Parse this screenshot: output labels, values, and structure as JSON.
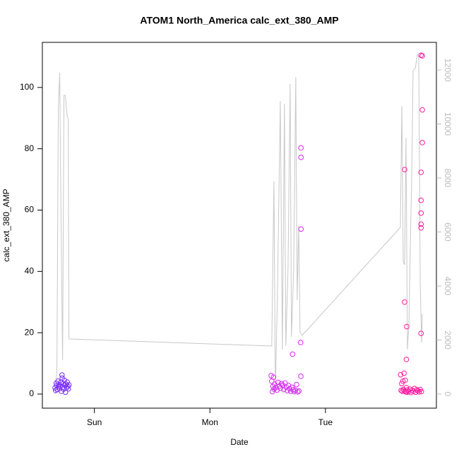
{
  "chart_data": {
    "type": "scatter",
    "title": "ATOM1 North_America calc_ext_380_AMP",
    "x_label": "Date",
    "y_label": "calc_ext_380_AMP",
    "xlim": [
      -0.45,
      2.96
    ],
    "xticks": [
      {
        "value": 0,
        "label": "Sun"
      },
      {
        "value": 1,
        "label": "Mon"
      },
      {
        "value": 2,
        "label": "Tue"
      }
    ],
    "ylim": [
      -4.6,
      114.7
    ],
    "yticks": [
      0,
      20,
      40,
      60,
      80,
      100
    ],
    "y2lim": [
      -523,
      13020
    ],
    "y2ticks": [
      0,
      2000,
      4000,
      6000,
      8000,
      10000,
      12000
    ],
    "series": [
      {
        "type": "scatter",
        "color": "#7b2ff7",
        "x": [
          -0.34,
          -0.335,
          -0.33,
          -0.325,
          -0.32,
          -0.315,
          -0.31,
          -0.305,
          -0.3,
          -0.295,
          -0.29,
          -0.285,
          -0.28,
          -0.278,
          -0.275,
          -0.27,
          -0.265,
          -0.26,
          -0.255,
          -0.25,
          -0.245,
          -0.24,
          -0.235,
          -0.23,
          -0.225,
          -0.22
        ],
        "values": [
          2,
          1.2,
          3.5,
          2.8,
          1.5,
          4.2,
          2.4,
          3.1,
          1.8,
          2.6,
          3.8,
          0.9,
          6.2,
          5.2,
          2.2,
          3.4,
          1.6,
          4.5,
          2.9,
          0.6,
          3.2,
          2.1,
          3.9,
          2.5,
          1.7,
          3.0
        ]
      },
      {
        "type": "scatter",
        "color": "#d42cf0",
        "x": [
          1.53,
          1.535,
          1.54,
          1.545,
          1.55,
          1.555,
          1.56,
          1.57,
          1.58,
          1.59,
          1.6,
          1.61,
          1.62,
          1.63,
          1.64,
          1.65,
          1.66,
          1.67,
          1.68,
          1.69,
          1.7,
          1.71,
          1.72,
          1.73,
          1.74,
          1.75,
          1.76,
          1.77,
          1.715,
          1.788,
          1.788,
          1.788,
          1.785,
          1.787
        ],
        "values": [
          6,
          4.2,
          0.8,
          2.5,
          5.5,
          1.6,
          3.2,
          2.1,
          1.3,
          3.8,
          2.6,
          1.9,
          3.4,
          2.9,
          1.5,
          3.6,
          2.3,
          1.1,
          2.8,
          1.7,
          0.9,
          2.2,
          1.4,
          0.8,
          1.2,
          3.1,
          0.7,
          1.0,
          13,
          80.3,
          77.2,
          53.8,
          16.8,
          5.8
        ]
      },
      {
        "type": "scatter",
        "color": "#ff1aa0",
        "x": [
          2.65,
          2.655,
          2.66,
          2.665,
          2.67,
          2.675,
          2.68,
          2.685,
          2.69,
          2.695,
          2.7,
          2.705,
          2.71,
          2.72,
          2.73,
          2.74,
          2.75,
          2.76,
          2.77,
          2.78,
          2.79,
          2.8,
          2.81,
          2.82,
          2.83,
          2.685,
          2.685,
          2.703,
          2.7,
          2.827,
          2.838,
          2.838,
          2.838,
          2.827,
          2.827,
          2.827,
          2.827,
          2.827,
          2.827
        ],
        "values": [
          6.3,
          1.2,
          3.4,
          0.9,
          4.2,
          1.5,
          6.8,
          1.0,
          4.5,
          0.7,
          2.1,
          0.6,
          1.3,
          0.8,
          1.6,
          0.5,
          1.2,
          0.9,
          1.8,
          0.6,
          1.4,
          1.1,
          0.7,
          1.5,
          0.8,
          73.2,
          30,
          22,
          11.3,
          110.5,
          110.3,
          92.7,
          82,
          72.3,
          63.2,
          59,
          55.4,
          54.2,
          19.8
        ]
      },
      {
        "type": "line",
        "axis": "y2",
        "color": "#c8c8c8",
        "x": [
          -0.336,
          -0.324,
          -0.312,
          -0.3,
          -0.287,
          -0.275,
          -0.263,
          -0.251,
          -0.239,
          -0.226,
          -0.22,
          1.535,
          1.554,
          1.566,
          1.584,
          1.609,
          1.627,
          1.645,
          1.657,
          1.676,
          1.694,
          1.706,
          1.725,
          1.743,
          1.755,
          1.768,
          1.78,
          1.798,
          2.648,
          2.661,
          2.673,
          2.685,
          2.697,
          2.709,
          2.722,
          2.734,
          2.746,
          2.758,
          2.777,
          2.795,
          2.807,
          2.82,
          2.832,
          2.838
        ],
        "values": [
          0,
          993,
          10536,
          11895,
          5961,
          1255,
          11059,
          11059,
          10405,
          10144,
          2039,
          1778,
          7869,
          78,
          3608,
          10850,
          1647,
          10745,
          1778,
          4654,
          11477,
          2118,
          4654,
          11739,
          3477,
          6222,
          2301,
          2170,
          6170,
          10667,
          4915,
          4784,
          9490,
          1647,
          2562,
          5438,
          7922,
          11974,
          12052,
          12549,
          12549,
          4131,
          1908,
          2954
        ]
      }
    ]
  }
}
